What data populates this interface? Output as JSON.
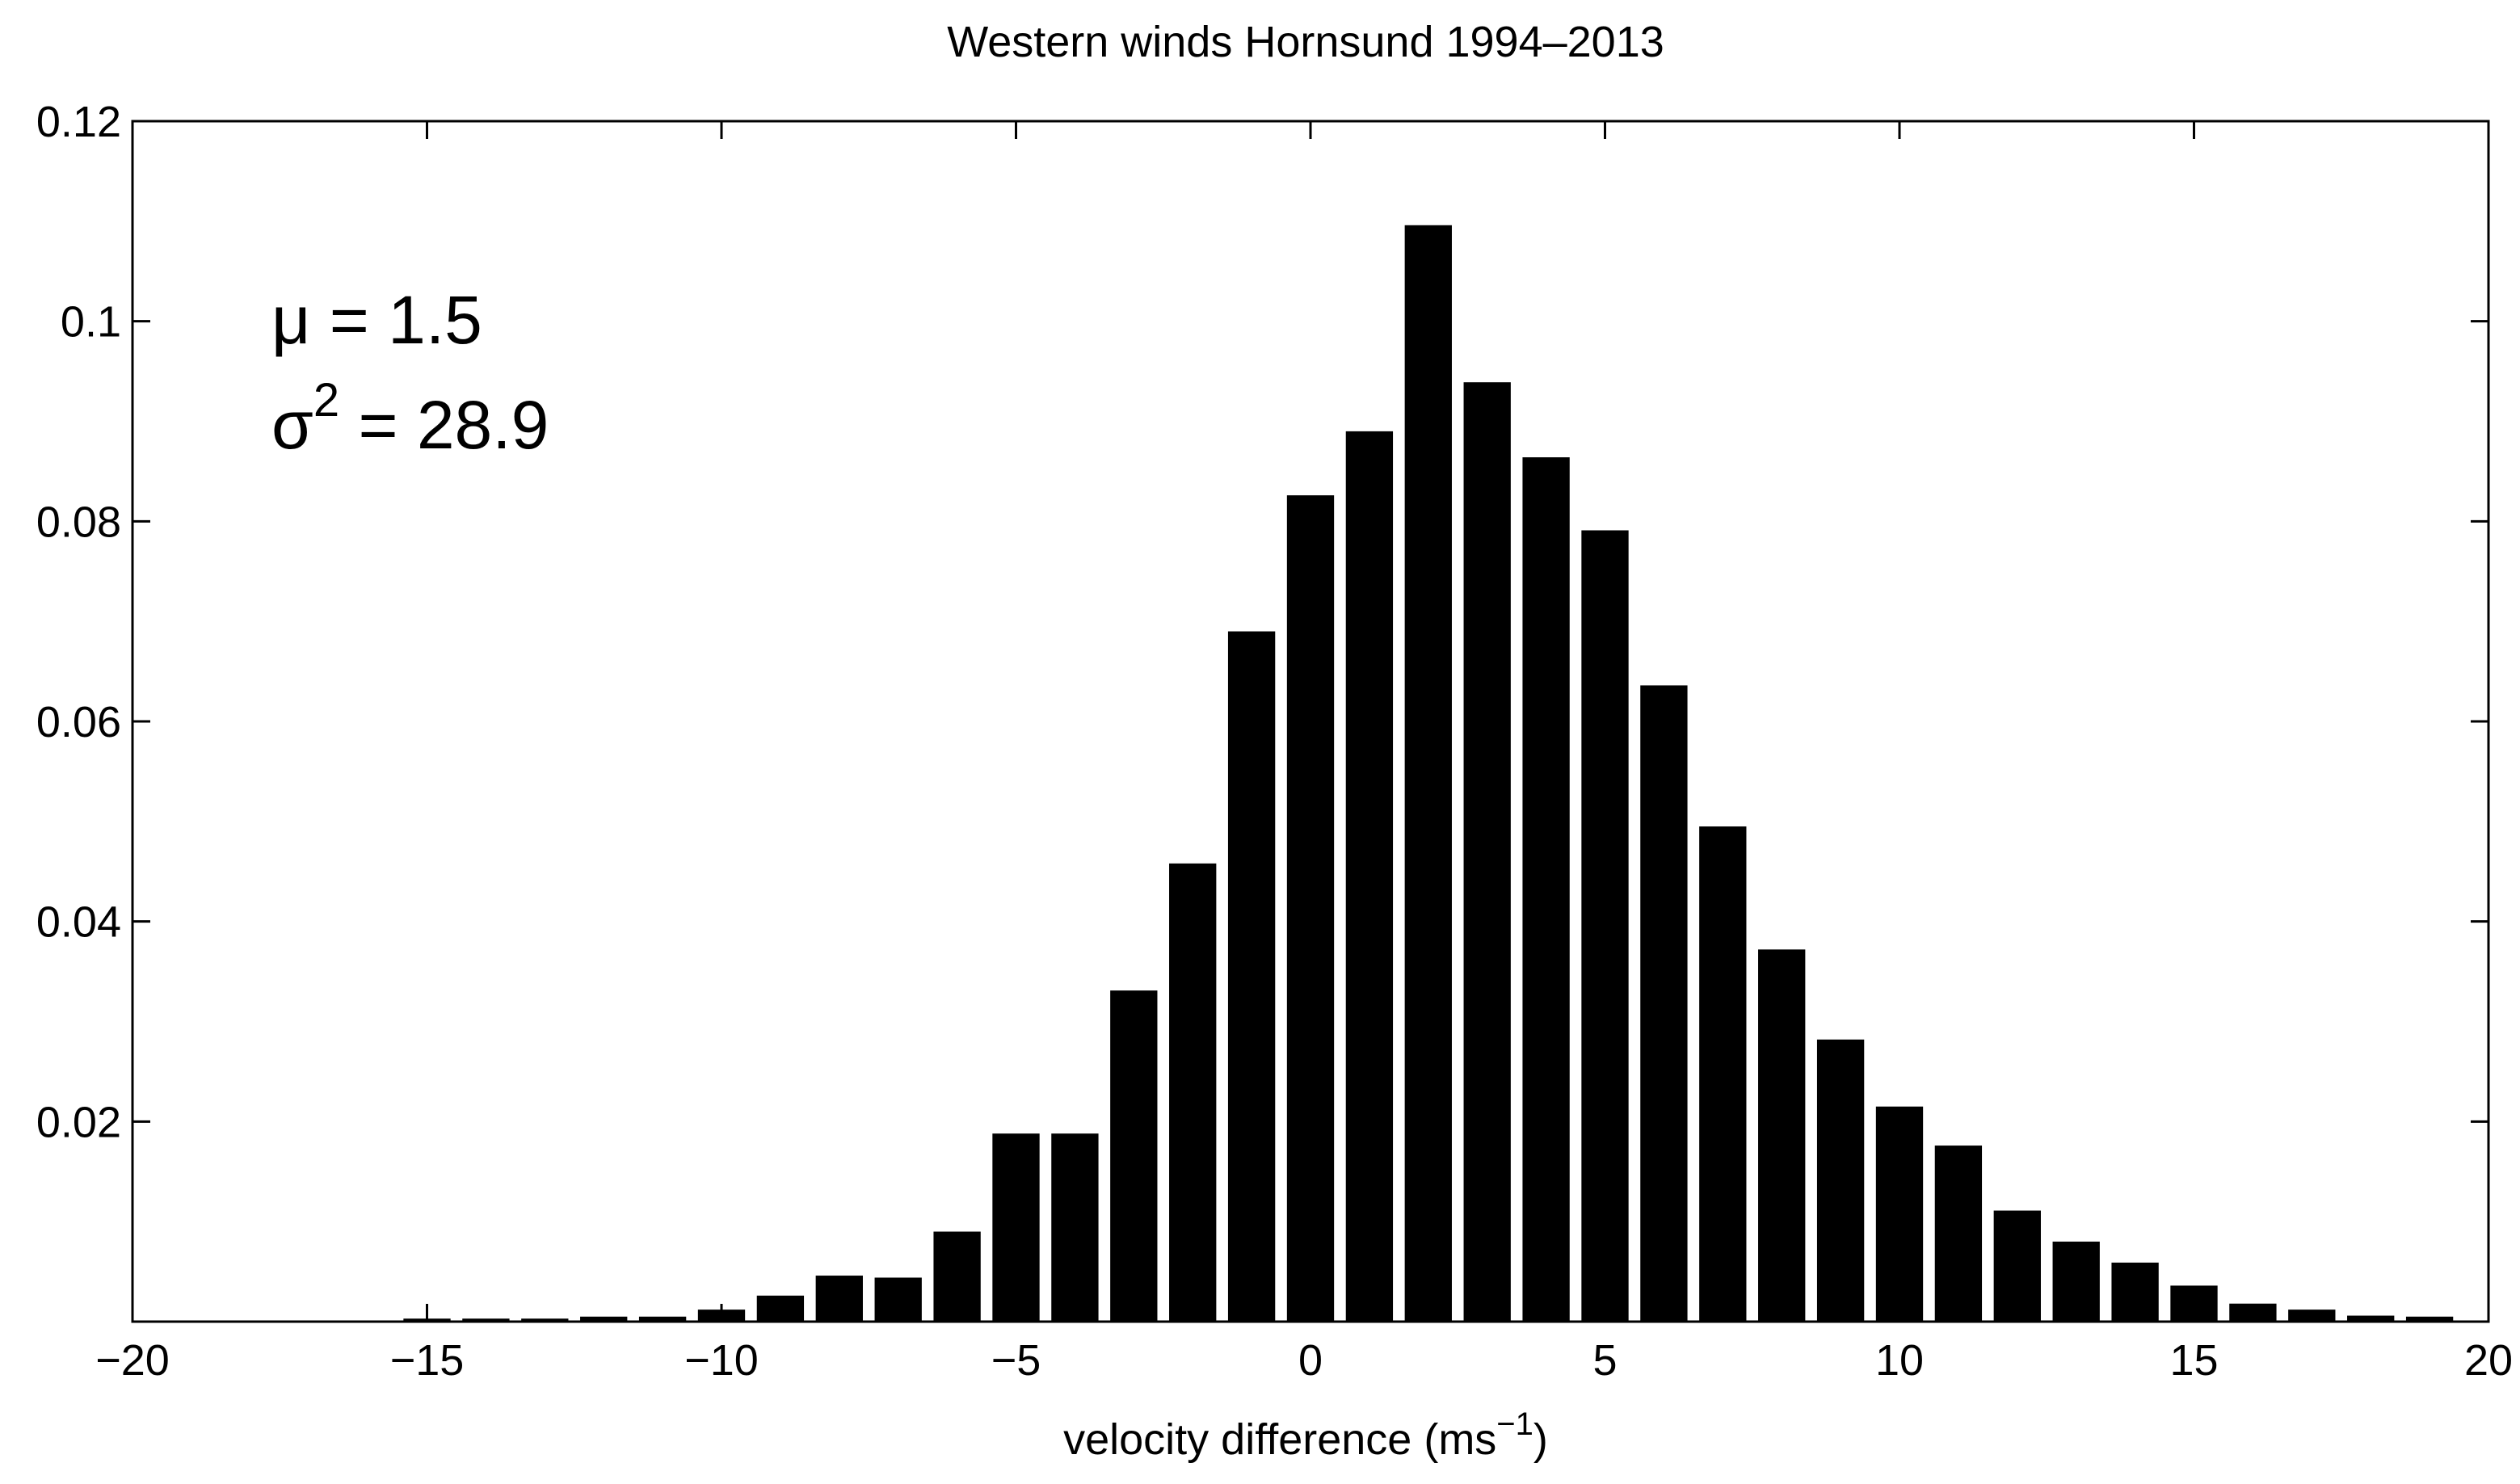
{
  "chart_data": {
    "type": "bar",
    "title": "Western winds Hornsund 1994–2013",
    "xlabel": {
      "text": "velocity difference (ms",
      "sup": "−1",
      "end": ")"
    },
    "annotations": [
      {
        "text": "μ = 1.5"
      },
      {
        "text": "σ",
        "sup": "2",
        "end": " = 28.9"
      }
    ],
    "x": [
      -15,
      -14,
      -13,
      -12,
      -11,
      -10,
      -9,
      -8,
      -7,
      -6,
      -5,
      -4,
      -3,
      -2,
      -1,
      0,
      1,
      2,
      3,
      4,
      5,
      6,
      7,
      8,
      9,
      10,
      11,
      12,
      13,
      14,
      15,
      16,
      17,
      18,
      19
    ],
    "values": [
      0.0003,
      0.0003,
      0.0003,
      0.0005,
      0.0005,
      0.0012,
      0.0026,
      0.0046,
      0.0044,
      0.009,
      0.0188,
      0.0188,
      0.0331,
      0.0458,
      0.069,
      0.0826,
      0.089,
      0.1096,
      0.0939,
      0.0864,
      0.0791,
      0.0636,
      0.0495,
      0.0372,
      0.0282,
      0.0215,
      0.0176,
      0.0111,
      0.008,
      0.0059,
      0.0036,
      0.0018,
      0.0012,
      0.0006,
      0.0005
    ],
    "color": "#000000",
    "bar_width": 0.8,
    "xlim": [
      -20,
      20
    ],
    "xticks": [
      {
        "value": -20,
        "label": "−20"
      },
      {
        "value": -15,
        "label": "−15"
      },
      {
        "value": -10,
        "label": "−10"
      },
      {
        "value": -5,
        "label": "−5"
      },
      0,
      5,
      10,
      15,
      20
    ],
    "ylim": [
      0,
      0.12
    ],
    "yticks": [
      0.02,
      0.04,
      0.06,
      0.08,
      0.1,
      0.12
    ],
    "grid": false
  }
}
